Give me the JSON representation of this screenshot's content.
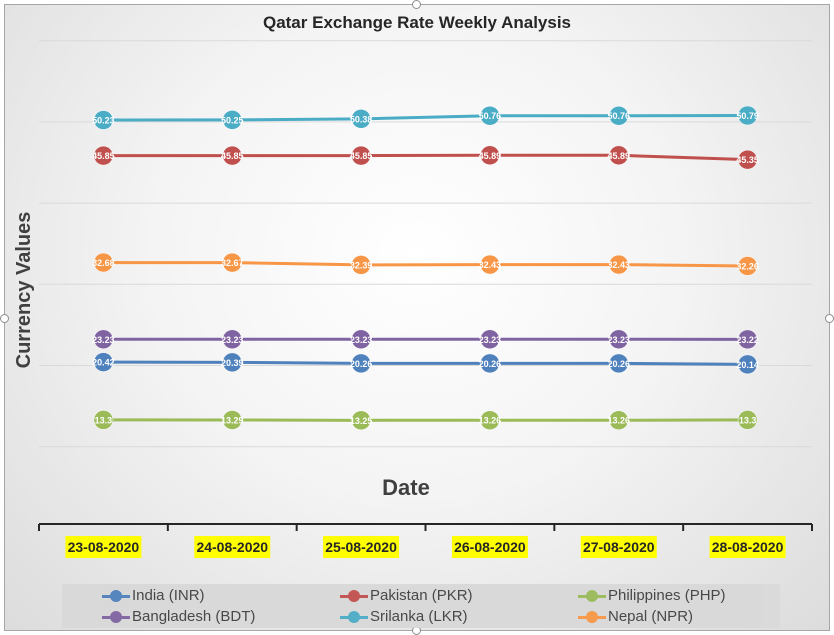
{
  "chart_data": {
    "type": "line",
    "title": "Qatar Exchange Rate Weekly Analysis",
    "xlabel": "Date",
    "ylabel": "Currency Values",
    "categories": [
      "23-08-2020",
      "24-08-2020",
      "25-08-2020",
      "26-08-2020",
      "27-08-2020",
      "28-08-2020"
    ],
    "ylim": [
      0,
      60
    ],
    "grid": true,
    "legend_position": "bottom",
    "series": [
      {
        "name": "Srilanka (LKR)",
        "color": "#4bacc6",
        "values": [
          50.23,
          50.25,
          50.38,
          50.76,
          50.76,
          50.79
        ],
        "labels": [
          "50.23",
          "50.25",
          "50.38",
          "50.76",
          "50.76",
          "50.79"
        ]
      },
      {
        "name": "Pakistan (PKR)",
        "color": "#c0504d",
        "values": [
          45.85,
          45.85,
          45.85,
          45.89,
          45.89,
          45.35
        ],
        "labels": [
          "45.85",
          "45.85",
          "45.85",
          "45.89",
          "45.89",
          "45.35"
        ]
      },
      {
        "name": "Nepal (NPR)",
        "color": "#f79646",
        "values": [
          32.68,
          32.67,
          32.39,
          32.43,
          32.43,
          32.26
        ],
        "labels": [
          "32.68",
          "32.67",
          "32.39",
          "32.43",
          "32.43",
          "32.26"
        ]
      },
      {
        "name": "Bangladesh (BDT)",
        "color": "#8064a2",
        "values": [
          23.23,
          23.23,
          23.23,
          23.23,
          23.23,
          23.22
        ],
        "labels": [
          "23.23",
          "23.23",
          "23.23",
          "23.23",
          "23.23",
          "23.22"
        ]
      },
      {
        "name": "India (INR)",
        "color": "#4f81bd",
        "values": [
          20.42,
          20.39,
          20.26,
          20.26,
          20.26,
          20.14
        ],
        "labels": [
          "20.42",
          "20.39",
          "20.26",
          "20.26",
          "20.26",
          "20.14"
        ]
      },
      {
        "name": "Philippines (PHP)",
        "color": "#9bbb59",
        "values": [
          13.3,
          13.29,
          13.25,
          13.26,
          13.26,
          13.3
        ],
        "labels": [
          "13.3",
          "13.29",
          "13.25",
          "13.26",
          "13.26",
          "13.3"
        ]
      }
    ],
    "legend_order": [
      "India (INR)",
      "Pakistan (PKR)",
      "Philippines (PHP)",
      "Bangladesh (BDT)",
      "Srilanka (LKR)",
      "Nepal (NPR)"
    ]
  },
  "colors": {
    "category_highlight": "#ffff00",
    "gridline": "#d9d9d9",
    "axis": "#262626"
  }
}
